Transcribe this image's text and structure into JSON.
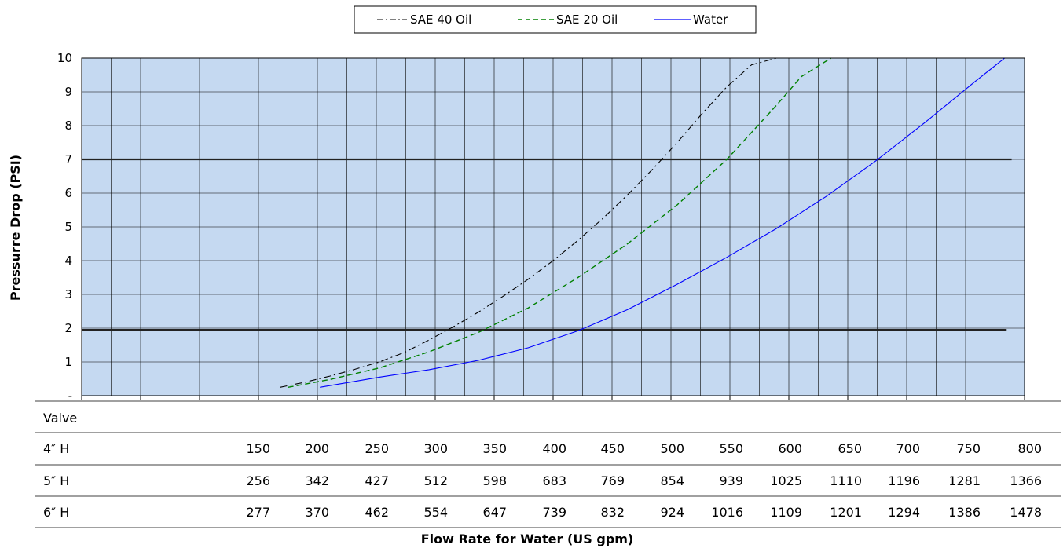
{
  "chart_data": {
    "type": "line",
    "title": "",
    "ylabel": "Pressurre Drop (PSI)",
    "xlabel": "Flow Rate for Water (US gpm)",
    "ylim": [
      0,
      10
    ],
    "y_ticks": [
      "-",
      "1",
      "2",
      "3",
      "4",
      "5",
      "6",
      "7",
      "8",
      "9",
      "10"
    ],
    "x_reference": "4″ H valve flow",
    "xlim": [
      -150,
      800
    ],
    "grid": true,
    "legend_position": "top-center",
    "plot_background": "#c5d9f1",
    "series": [
      {
        "name": "SAE 40 Oil",
        "color": "#000000",
        "style": "dash-dot",
        "x": [
          50,
          75,
          100,
          125,
          150,
          175,
          200,
          225,
          250,
          275,
          300,
          325,
          350,
          375,
          400,
          425,
          450,
          475,
          500,
          525,
          550
        ],
        "y": [
          0.25,
          0.4,
          0.58,
          0.78,
          1.0,
          1.28,
          1.65,
          2.05,
          2.48,
          2.95,
          3.45,
          4.0,
          4.6,
          5.25,
          5.95,
          6.7,
          7.5,
          8.35,
          9.15,
          9.8,
          10.0
        ]
      },
      {
        "name": "SAE 20 Oil",
        "color": "#008000",
        "style": "dashed",
        "x": [
          58,
          100,
          150,
          200,
          250,
          300,
          350,
          400,
          450,
          500,
          550,
          575,
          605
        ],
        "y": [
          0.25,
          0.48,
          0.82,
          1.3,
          1.88,
          2.6,
          3.5,
          4.5,
          5.65,
          7.0,
          8.6,
          9.45,
          10.0
        ]
      },
      {
        "name": "Water",
        "color": "#0000ff",
        "style": "solid",
        "x": [
          90,
          150,
          200,
          250,
          300,
          350,
          400,
          450,
          500,
          550,
          600,
          650,
          700,
          750,
          780
        ],
        "y": [
          0.25,
          0.55,
          0.77,
          1.05,
          1.42,
          1.92,
          2.55,
          3.3,
          4.1,
          4.95,
          5.9,
          6.95,
          8.1,
          9.3,
          10.0
        ]
      }
    ],
    "reference_lines": [
      {
        "y": 7.0,
        "x_end": 787
      },
      {
        "y": 1.95,
        "x_end": 782
      }
    ],
    "table": {
      "header": "Valve",
      "rows": [
        {
          "label": "4″ H",
          "values": [
            "150",
            "200",
            "250",
            "300",
            "350",
            "400",
            "450",
            "500",
            "550",
            "600",
            "650",
            "700",
            "750",
            "800"
          ]
        },
        {
          "label": "5″ H",
          "values": [
            "256",
            "342",
            "427",
            "512",
            "598",
            "683",
            "769",
            "854",
            "939",
            "1025",
            "1110",
            "1196",
            "1281",
            "1366"
          ]
        },
        {
          "label": "6″ H",
          "values": [
            "277",
            "370",
            "462",
            "554",
            "647",
            "739",
            "832",
            "924",
            "1016",
            "1109",
            "1201",
            "1294",
            "1386",
            "1478"
          ]
        }
      ]
    }
  }
}
